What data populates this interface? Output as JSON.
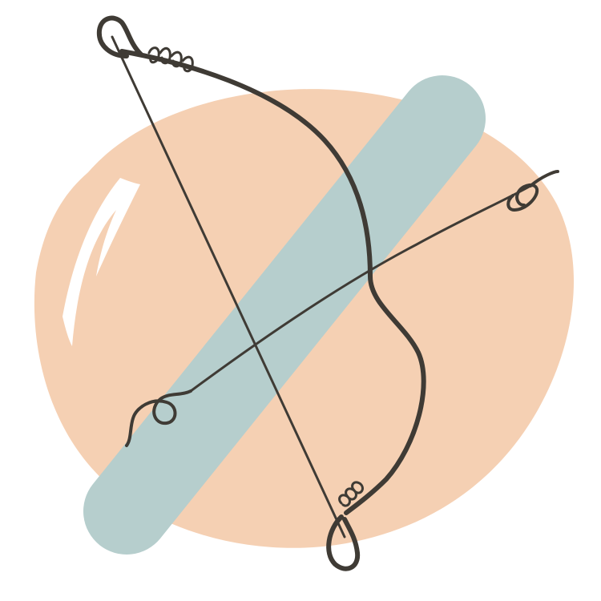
{
  "illustration": {
    "subject": "bow-and-arrow-icon",
    "colors": {
      "background": "#ffffff",
      "blob": "#f5d0b3",
      "stripe": "#b6cecd",
      "highlight": "#ffffff",
      "ink": "#3f3b35"
    }
  }
}
